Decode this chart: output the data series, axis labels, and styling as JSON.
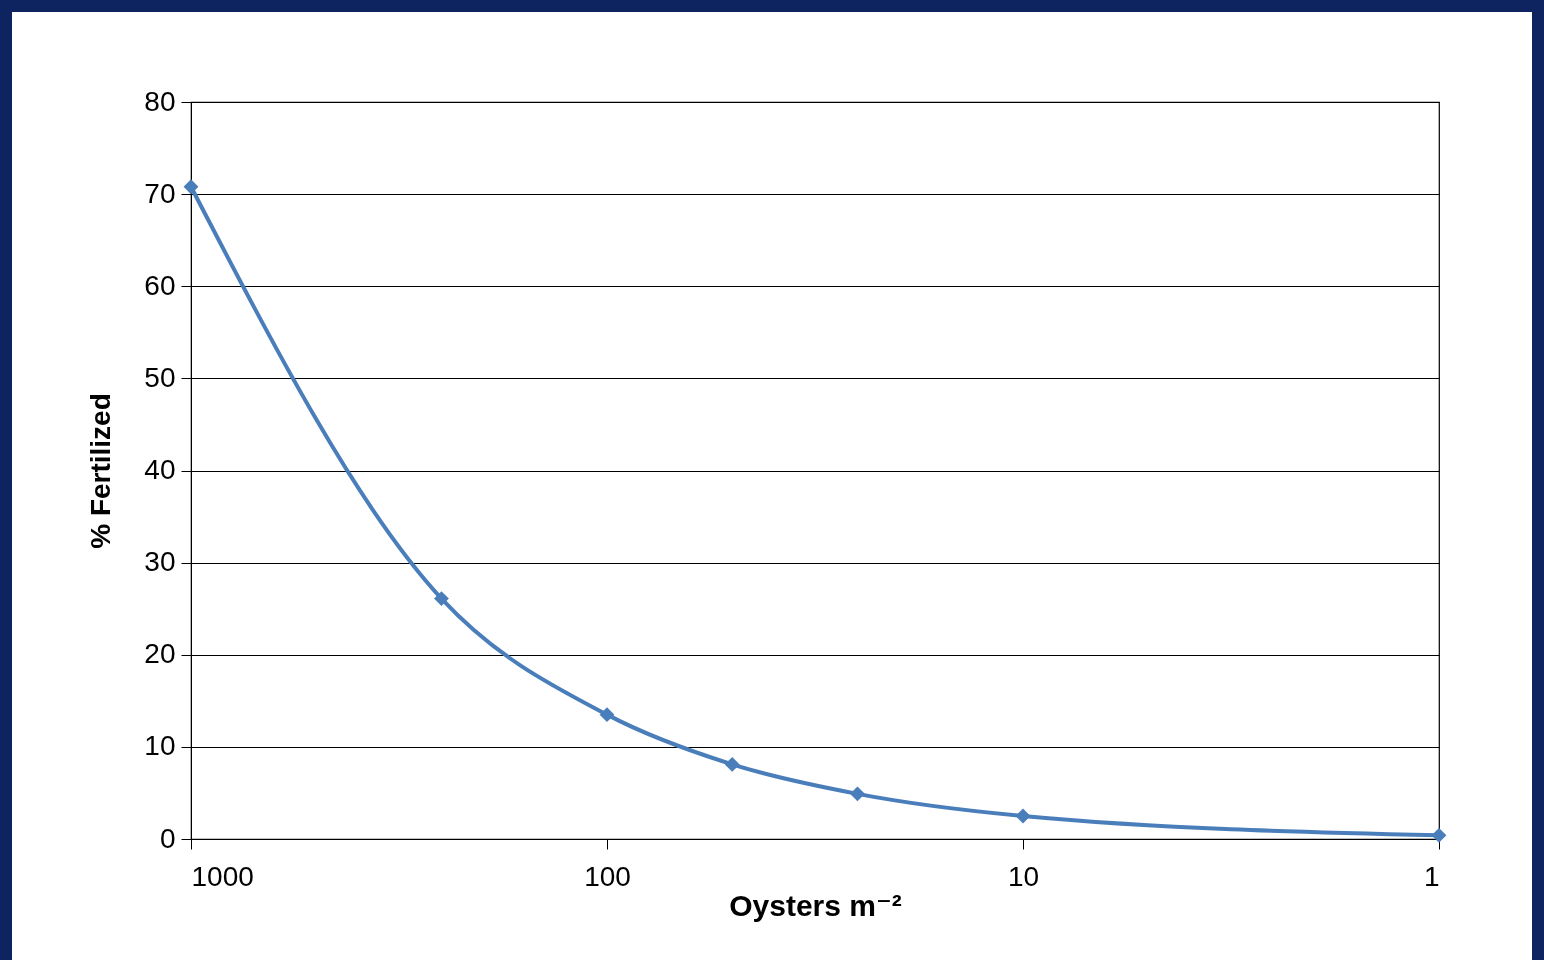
{
  "chart_data": {
    "type": "line",
    "xlabel": "Oysters m⁻²",
    "ylabel": "% Fertilized",
    "x": [
      1000,
      250,
      100,
      50,
      25,
      10,
      1
    ],
    "series": [
      {
        "color": "#4a7ebb",
        "values": [
          70.8,
          26.1,
          13.5,
          8.1,
          4.9,
          2.5,
          0.4
        ]
      }
    ],
    "log": "x",
    "xlim": [
      1000,
      1
    ],
    "xticks": [
      1000,
      100,
      10,
      1
    ],
    "ylim": [
      0,
      80
    ],
    "yticks": [
      0,
      10,
      20,
      30,
      40,
      50,
      60,
      70,
      80
    ],
    "grid": "y",
    "marker": "diamond",
    "line_style": "solid"
  }
}
